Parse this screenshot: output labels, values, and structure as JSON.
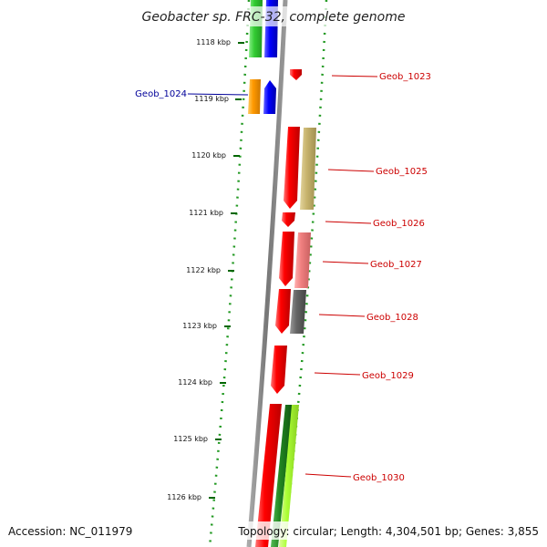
{
  "title": "Geobacter sp. FRC-32, complete genome",
  "footer": {
    "accession": "Accession: NC_011979",
    "stats": "Topology: circular; Length: 4,304,501 bp; Genes: 3,855"
  },
  "ticks": [
    {
      "label": "1118 kbp"
    },
    {
      "label": "1119 kbp"
    },
    {
      "label": "1120 kbp"
    },
    {
      "label": "1121 kbp"
    },
    {
      "label": "1122 kbp"
    },
    {
      "label": "1123 kbp"
    },
    {
      "label": "1124 kbp"
    },
    {
      "label": "1125 kbp"
    },
    {
      "label": "1126 kbp"
    }
  ],
  "genes": [
    {
      "label": "Geob_1023",
      "label_color": "#cc0000",
      "side": "right"
    },
    {
      "label": "Geob_1024",
      "label_color": "#000099",
      "side": "left"
    },
    {
      "label": "Geob_1025",
      "label_color": "#cc0000",
      "side": "right"
    },
    {
      "label": "Geob_1026",
      "label_color": "#cc0000",
      "side": "right"
    },
    {
      "label": "Geob_1027",
      "label_color": "#cc0000",
      "side": "right"
    },
    {
      "label": "Geob_1028",
      "label_color": "#cc0000",
      "side": "right"
    },
    {
      "label": "Geob_1029",
      "label_color": "#cc0000",
      "side": "right"
    },
    {
      "label": "Geob_1030",
      "label_color": "#cc0000",
      "side": "right"
    }
  ],
  "colors": {
    "backbone": "#888888",
    "tick": "#006600",
    "cds_red": "#ff0000",
    "blue": "#0000ff",
    "green": "#33cc33",
    "orange": "#ff9900",
    "tan": "#c8b46e",
    "salmon": "#f08080",
    "gray": "#666666",
    "dark_green": "#228822",
    "lime": "#aaff33"
  }
}
